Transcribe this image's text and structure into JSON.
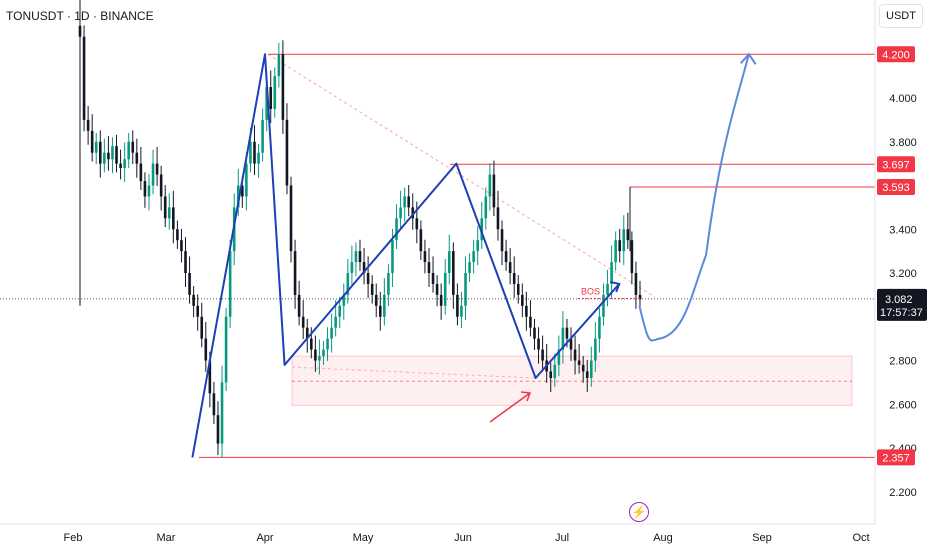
{
  "header": {
    "symbol_title": "TONUSDT · 1D · BINANCE",
    "currency": "USDT"
  },
  "colors": {
    "up": "#089981",
    "down": "#131722",
    "pattern": "#1e3fb5",
    "projection": "#5b8ad6",
    "level": "#f23645",
    "zone": "rgba(242,54,69,0.08)"
  },
  "chart_data": {
    "type": "candlestick",
    "x_labels": [
      "Feb",
      "Mar",
      "Apr",
      "May",
      "Jun",
      "Jul",
      "Aug",
      "Sep",
      "Oct"
    ],
    "y_ticks": [
      "4.000",
      "3.800",
      "3.400",
      "3.200",
      "2.800",
      "2.600",
      "2.400",
      "2.200"
    ],
    "ylim": [
      2.12,
      4.35
    ],
    "price_levels": [
      {
        "label": "4.200",
        "value": 4.2
      },
      {
        "label": "3.697",
        "value": 3.697
      },
      {
        "label": "3.593",
        "value": 3.593
      },
      {
        "label": "2.357",
        "value": 2.357
      }
    ],
    "last_price": {
      "label": "3.082",
      "value": 3.082,
      "countdown": "17:57:37"
    },
    "annotation": {
      "text": "BOS",
      "value": 3.12
    },
    "demand_zone": {
      "top": 2.82,
      "bottom": 2.595
    },
    "pattern_points": [
      {
        "date": "Mar 09",
        "value": 2.357
      },
      {
        "date": "Apr 01",
        "value": 4.2
      },
      {
        "date": "Apr 07",
        "value": 2.78
      },
      {
        "date": "May 29",
        "value": 3.7
      },
      {
        "date": "Jun 23",
        "value": 2.72
      },
      {
        "date": "Jul 18",
        "value": 3.15
      }
    ],
    "projection": [
      {
        "date": "Jul 24",
        "value": 3.05
      },
      {
        "date": "Jul 30",
        "value": 2.9
      },
      {
        "date": "Aug 08",
        "value": 3.1
      },
      {
        "date": "Aug 20",
        "value": 3.8
      },
      {
        "date": "Aug 27",
        "value": 4.2
      }
    ],
    "series_close": [
      4.28,
      3.9,
      3.85,
      3.75,
      3.8,
      3.7,
      3.75,
      3.72,
      3.78,
      3.7,
      3.68,
      3.72,
      3.8,
      3.75,
      3.7,
      3.62,
      3.55,
      3.6,
      3.7,
      3.65,
      3.55,
      3.45,
      3.5,
      3.4,
      3.35,
      3.3,
      3.2,
      3.1,
      3.05,
      3.0,
      2.9,
      2.8,
      2.65,
      2.55,
      2.42,
      2.7,
      3.0,
      3.3,
      3.5,
      3.6,
      3.55,
      3.7,
      3.8,
      3.7,
      3.75,
      3.9,
      4.05,
      3.95,
      4.1,
      4.2,
      3.9,
      3.6,
      3.3,
      3.1,
      3.0,
      2.95,
      2.9,
      2.85,
      2.8,
      2.82,
      2.85,
      2.9,
      2.95,
      3.0,
      3.05,
      3.1,
      3.2,
      3.25,
      3.3,
      3.25,
      3.2,
      3.15,
      3.1,
      3.05,
      3.0,
      3.1,
      3.2,
      3.35,
      3.45,
      3.5,
      3.55,
      3.5,
      3.45,
      3.4,
      3.3,
      3.25,
      3.2,
      3.15,
      3.1,
      3.05,
      3.2,
      3.3,
      3.1,
      3.0,
      3.05,
      3.2,
      3.25,
      3.3,
      3.35,
      3.45,
      3.55,
      3.65,
      3.5,
      3.4,
      3.3,
      3.25,
      3.2,
      3.15,
      3.1,
      3.05,
      3.0,
      2.95,
      2.9,
      2.85,
      2.8,
      2.75,
      2.72,
      2.78,
      2.85,
      2.95,
      2.9,
      2.85,
      2.8,
      2.78,
      2.75,
      2.72,
      2.8,
      2.9,
      3.0,
      3.1,
      3.15,
      3.25,
      3.35,
      3.3,
      3.4,
      3.35,
      3.2,
      3.1,
      3.08
    ]
  }
}
